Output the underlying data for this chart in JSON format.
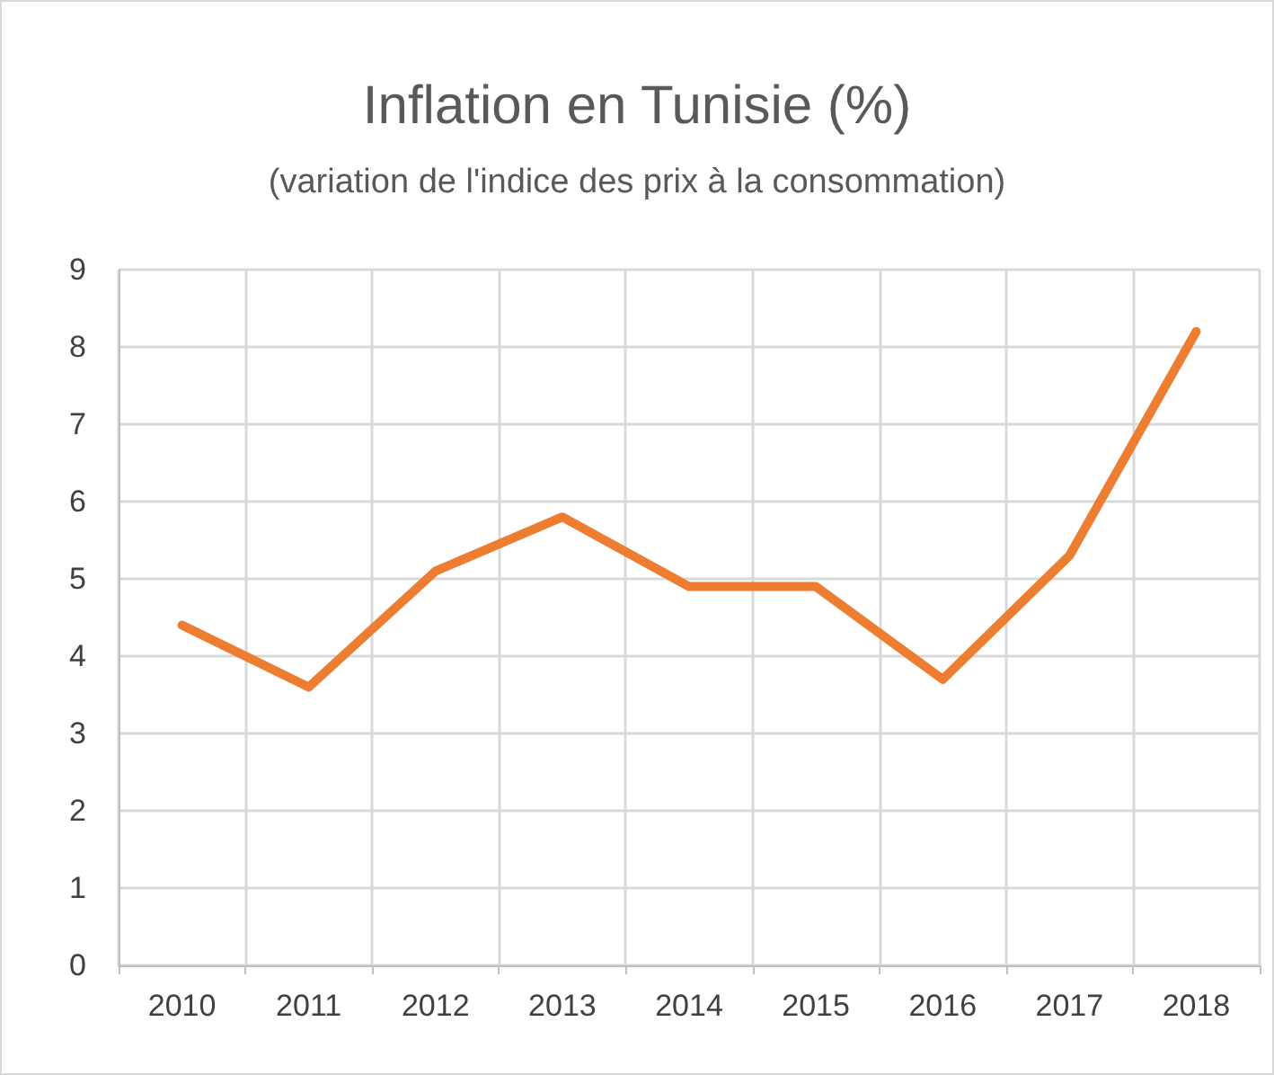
{
  "chart_data": {
    "type": "line",
    "title": "Inflation en Tunisie (%)",
    "subtitle": "(variation de l'indice des prix à la consommation)",
    "categories": [
      "2010",
      "2011",
      "2012",
      "2013",
      "2014",
      "2015",
      "2016",
      "2017",
      "2018"
    ],
    "series": [
      {
        "color": "#ed7d31",
        "values": [
          4.4,
          3.6,
          5.1,
          5.8,
          4.9,
          4.9,
          3.7,
          5.3,
          8.2
        ]
      }
    ],
    "ylim": [
      0,
      9
    ],
    "yticks": [
      0,
      1,
      2,
      3,
      4,
      5,
      6,
      7,
      8,
      9
    ],
    "grid": true,
    "marker": "none",
    "line_style": "solid"
  }
}
